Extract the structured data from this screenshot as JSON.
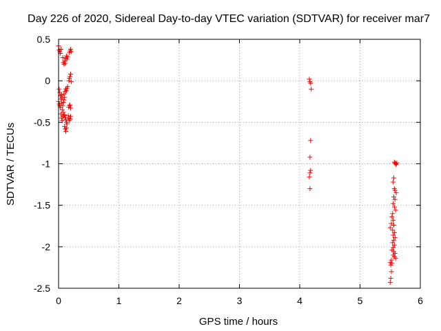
{
  "chart_data": {
    "type": "scatter",
    "title": "Day 226 of 2020, Sidereal Day-to-day VTEC variation (SDTVAR) for receiver mar7",
    "xlabel": "GPS time / hours",
    "ylabel": "SDTVAR / TECUs",
    "xlim": [
      0,
      6
    ],
    "ylim": [
      -2.5,
      0.5
    ],
    "grid": true,
    "marker": "plus",
    "color": "#ff0000",
    "x_ticks": [
      0,
      1,
      2,
      3,
      4,
      5,
      6
    ],
    "y_ticks": [
      0.5,
      0,
      -0.5,
      -1,
      -1.5,
      -2,
      -2.5
    ],
    "x_tick_labels": [
      "0",
      "1",
      "2",
      "3",
      "4",
      "5",
      "6"
    ],
    "y_tick_labels": [
      "0.5",
      "0",
      "-0.5",
      "-1",
      "-1.5",
      "-2",
      "-2.5"
    ],
    "series": [
      {
        "name": "mar7",
        "points": [
          [
            0.0,
            0.42
          ],
          [
            0.01,
            0.37
          ],
          [
            0.02,
            0.35
          ],
          [
            0.03,
            0.33
          ],
          [
            0.04,
            0.38
          ],
          [
            0.01,
            -0.1
          ],
          [
            0.02,
            -0.14
          ],
          [
            0.03,
            -0.18
          ],
          [
            0.0,
            -0.25
          ],
          [
            0.01,
            -0.28
          ],
          [
            0.02,
            -0.3
          ],
          [
            0.03,
            -0.32
          ],
          [
            0.04,
            -0.22
          ],
          [
            0.05,
            -0.27
          ],
          [
            0.06,
            -0.35
          ],
          [
            0.04,
            -0.4
          ],
          [
            0.05,
            -0.45
          ],
          [
            0.06,
            -0.48
          ],
          [
            0.07,
            -0.43
          ],
          [
            0.08,
            -0.38
          ],
          [
            0.09,
            -0.42
          ],
          [
            0.1,
            -0.41
          ],
          [
            0.11,
            -0.44
          ],
          [
            0.12,
            -0.47
          ],
          [
            0.13,
            -0.5
          ],
          [
            0.1,
            -0.55
          ],
          [
            0.11,
            -0.58
          ],
          [
            0.12,
            -0.61
          ],
          [
            0.13,
            -0.57
          ],
          [
            0.14,
            -0.52
          ],
          [
            0.07,
            0.28
          ],
          [
            0.08,
            0.22
          ],
          [
            0.09,
            0.2
          ],
          [
            0.1,
            0.24
          ],
          [
            0.11,
            0.21
          ],
          [
            0.12,
            0.27
          ],
          [
            0.13,
            0.3
          ],
          [
            0.14,
            0.26
          ],
          [
            0.15,
            0.29
          ],
          [
            0.09,
            -0.16
          ],
          [
            0.1,
            -0.2
          ],
          [
            0.11,
            -0.13
          ],
          [
            0.12,
            -0.1
          ],
          [
            0.13,
            -0.12
          ],
          [
            0.14,
            -0.09
          ],
          [
            0.15,
            -0.07
          ],
          [
            0.16,
            -0.42
          ],
          [
            0.17,
            -0.45
          ],
          [
            0.18,
            -0.48
          ],
          [
            0.19,
            -0.46
          ],
          [
            0.2,
            -0.43
          ],
          [
            0.17,
            -0.32
          ],
          [
            0.18,
            -0.3
          ],
          [
            0.19,
            -0.29
          ],
          [
            0.2,
            -0.33
          ],
          [
            0.17,
            0.0
          ],
          [
            0.18,
            0.03
          ],
          [
            0.19,
            0.05
          ],
          [
            0.2,
            0.08
          ],
          [
            0.21,
            -0.01
          ],
          [
            0.18,
            0.34
          ],
          [
            0.19,
            0.36
          ],
          [
            0.2,
            0.38
          ],
          [
            0.21,
            0.35
          ],
          [
            0.07,
            -0.3
          ],
          [
            0.08,
            -0.26
          ],
          [
            0.09,
            -0.23
          ],
          [
            0.06,
            -0.2
          ],
          [
            0.05,
            -0.17
          ],
          [
            4.16,
            0.02
          ],
          [
            4.17,
            -0.01
          ],
          [
            4.18,
            -0.03
          ],
          [
            4.19,
            -0.1
          ],
          [
            4.18,
            -0.72
          ],
          [
            4.17,
            -0.92
          ],
          [
            4.18,
            -1.08
          ],
          [
            4.17,
            -1.11
          ],
          [
            4.16,
            -1.16
          ],
          [
            4.17,
            -1.3
          ],
          [
            5.57,
            -0.98
          ],
          [
            5.58,
            -0.99
          ],
          [
            5.59,
            -1.0
          ],
          [
            5.6,
            -1.01
          ],
          [
            5.61,
            -0.99
          ],
          [
            5.56,
            -1.17
          ],
          [
            5.55,
            -1.22
          ],
          [
            5.57,
            -1.3
          ],
          [
            5.58,
            -1.32
          ],
          [
            5.6,
            -1.35
          ],
          [
            5.56,
            -1.4
          ],
          [
            5.58,
            -1.43
          ],
          [
            5.55,
            -1.48
          ],
          [
            5.57,
            -1.52
          ],
          [
            5.59,
            -1.56
          ],
          [
            5.54,
            -1.6
          ],
          [
            5.53,
            -1.64
          ],
          [
            5.55,
            -1.68
          ],
          [
            5.52,
            -1.72
          ],
          [
            5.56,
            -1.74
          ],
          [
            5.5,
            -1.77
          ],
          [
            5.54,
            -1.8
          ],
          [
            5.57,
            -1.83
          ],
          [
            5.55,
            -1.86
          ],
          [
            5.58,
            -1.89
          ],
          [
            5.56,
            -1.92
          ],
          [
            5.54,
            -1.95
          ],
          [
            5.57,
            -1.98
          ],
          [
            5.55,
            -2.01
          ],
          [
            5.53,
            -2.04
          ],
          [
            5.56,
            -2.06
          ],
          [
            5.58,
            -2.08
          ],
          [
            5.55,
            -2.1
          ],
          [
            5.57,
            -2.12
          ],
          [
            5.59,
            -2.14
          ],
          [
            5.52,
            -2.16
          ],
          [
            5.5,
            -2.19
          ],
          [
            5.51,
            -2.22
          ],
          [
            5.53,
            -2.2
          ],
          [
            5.52,
            -2.3
          ],
          [
            5.51,
            -2.38
          ],
          [
            5.5,
            -2.43
          ]
        ]
      }
    ]
  }
}
